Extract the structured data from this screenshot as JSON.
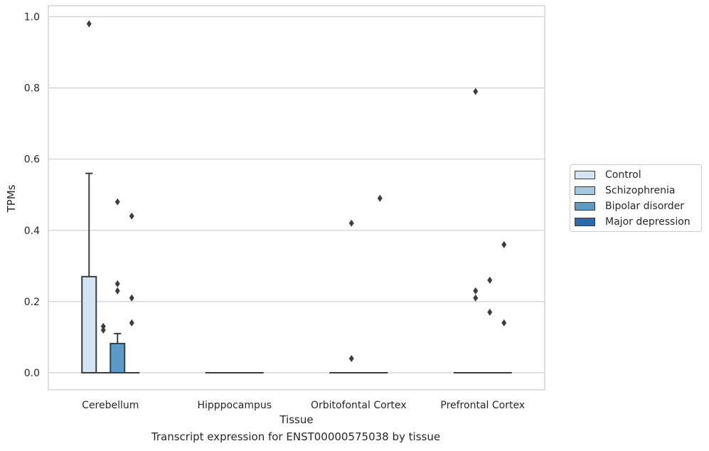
{
  "caption": "Transcript expression for ENST00000575038 by tissue",
  "chart_data": {
    "type": "box",
    "xlabel": "Tissue",
    "ylabel": "TPMs",
    "ylim": [
      -0.05,
      1.03
    ],
    "yticks": [
      0.0,
      0.2,
      0.4,
      0.6,
      0.8,
      1.0
    ],
    "ytick_labels": [
      "0.0",
      "0.2",
      "0.4",
      "0.6",
      "0.8",
      "1.0"
    ],
    "grid": true,
    "legend_position": "right",
    "categories": [
      "Cerebellum",
      "Hipppocampus",
      "Orbitofontal Cortex",
      "Prefrontal Cortex"
    ],
    "series": [
      {
        "name": "Control",
        "color": "#d3e4f3",
        "boxes": [
          {
            "q1": 0.0,
            "median": 0.0,
            "q3": 0.27,
            "whisker_low": 0.0,
            "whisker_high": 0.56,
            "outliers": [
              0.98
            ]
          },
          {
            "q1": 0.0,
            "median": 0.0,
            "q3": 0.0,
            "whisker_low": 0.0,
            "whisker_high": 0.0,
            "outliers": []
          },
          {
            "q1": 0.0,
            "median": 0.0,
            "q3": 0.0,
            "whisker_low": 0.0,
            "whisker_high": 0.0,
            "outliers": []
          },
          {
            "q1": 0.0,
            "median": 0.0,
            "q3": 0.0,
            "whisker_low": 0.0,
            "whisker_high": 0.0,
            "outliers": []
          }
        ]
      },
      {
        "name": "Schizophrenia",
        "color": "#a3c8e0",
        "boxes": [
          {
            "q1": 0.0,
            "median": 0.0,
            "q3": 0.0,
            "whisker_low": 0.0,
            "whisker_high": 0.0,
            "outliers": [
              0.12,
              0.13
            ]
          },
          {
            "q1": 0.0,
            "median": 0.0,
            "q3": 0.0,
            "whisker_low": 0.0,
            "whisker_high": 0.0,
            "outliers": []
          },
          {
            "q1": 0.0,
            "median": 0.0,
            "q3": 0.0,
            "whisker_low": 0.0,
            "whisker_high": 0.0,
            "outliers": [
              0.04,
              0.42
            ]
          },
          {
            "q1": 0.0,
            "median": 0.0,
            "q3": 0.0,
            "whisker_low": 0.0,
            "whisker_high": 0.0,
            "outliers": [
              0.21,
              0.23,
              0.79
            ]
          }
        ]
      },
      {
        "name": "Bipolar disorder",
        "color": "#5b9bc8",
        "boxes": [
          {
            "q1": 0.0,
            "median": 0.0,
            "q3": 0.082,
            "whisker_low": 0.0,
            "whisker_high": 0.11,
            "outliers": [
              0.23,
              0.25,
              0.48
            ]
          },
          {
            "q1": 0.0,
            "median": 0.0,
            "q3": 0.0,
            "whisker_low": 0.0,
            "whisker_high": 0.0,
            "outliers": []
          },
          {
            "q1": 0.0,
            "median": 0.0,
            "q3": 0.0,
            "whisker_low": 0.0,
            "whisker_high": 0.0,
            "outliers": []
          },
          {
            "q1": 0.0,
            "median": 0.0,
            "q3": 0.0,
            "whisker_low": 0.0,
            "whisker_high": 0.0,
            "outliers": [
              0.17,
              0.26
            ]
          }
        ]
      },
      {
        "name": "Major depression",
        "color": "#2b6aa6",
        "boxes": [
          {
            "q1": 0.0,
            "median": 0.0,
            "q3": 0.0,
            "whisker_low": 0.0,
            "whisker_high": 0.0,
            "outliers": [
              0.14,
              0.21,
              0.44
            ]
          },
          {
            "q1": 0.0,
            "median": 0.0,
            "q3": 0.0,
            "whisker_low": 0.0,
            "whisker_high": 0.0,
            "outliers": []
          },
          {
            "q1": 0.0,
            "median": 0.0,
            "q3": 0.0,
            "whisker_low": 0.0,
            "whisker_high": 0.0,
            "outliers": [
              0.49
            ]
          },
          {
            "q1": 0.0,
            "median": 0.0,
            "q3": 0.0,
            "whisker_low": 0.0,
            "whisker_high": 0.0,
            "outliers": [
              0.14,
              0.36
            ]
          }
        ]
      }
    ]
  }
}
